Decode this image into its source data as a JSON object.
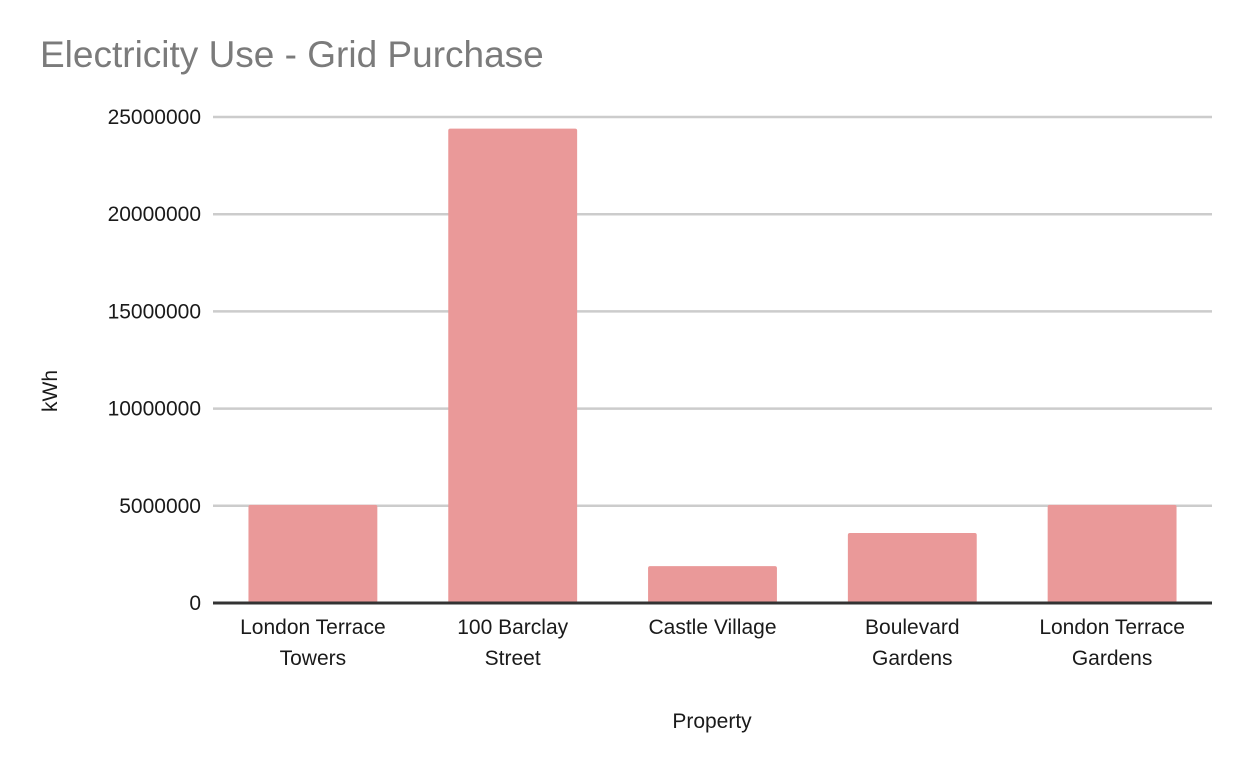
{
  "chart_data": {
    "type": "bar",
    "title": "Electricity Use - Grid Purchase",
    "xlabel": "Property",
    "ylabel": "kWh",
    "categories": [
      [
        "London Terrace",
        "Towers"
      ],
      [
        "100 Barclay",
        "Street"
      ],
      [
        "Castle Village"
      ],
      [
        "Boulevard",
        "Gardens"
      ],
      [
        "London Terrace",
        "Gardens"
      ]
    ],
    "values": [
      5050000,
      24400000,
      1900000,
      3600000,
      5050000
    ],
    "ylim": [
      0,
      25000000
    ],
    "yticks": [
      0,
      5000000,
      10000000,
      15000000,
      20000000,
      25000000
    ],
    "ytick_labels": [
      "0",
      "5000000",
      "10000000",
      "15000000",
      "20000000",
      "25000000"
    ],
    "grid": true,
    "legend": "none",
    "colors": {
      "bar": "#ea9999",
      "grid": "#cccccc",
      "axis": "#333333"
    }
  }
}
